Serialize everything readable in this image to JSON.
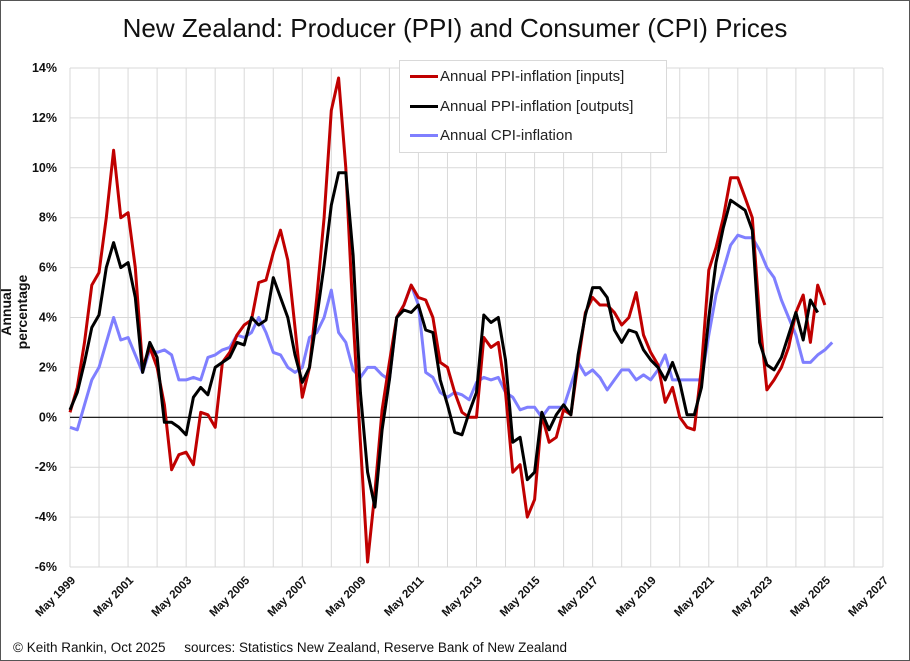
{
  "chart_data": {
    "type": "line",
    "title": "New Zealand: Producer (PPI) and Consumer (CPI) Prices",
    "ylabel": "Annual percentage",
    "xlabel": "",
    "ylim": [
      -6,
      14
    ],
    "yticks": [
      "-6%",
      "-4%",
      "-2%",
      "0%",
      "2%",
      "4%",
      "6%",
      "8%",
      "10%",
      "12%",
      "14%"
    ],
    "xlim": [
      "May 1999",
      "May 2027"
    ],
    "xticks": [
      "May 1999",
      "May 2001",
      "May 2003",
      "May 2005",
      "May 2007",
      "May 2009",
      "May 2011",
      "May 2013",
      "May 2015",
      "May 2017",
      "May 2019",
      "May 2021",
      "May 2023",
      "May 2025",
      "May 2027"
    ],
    "grid": true,
    "frequency": "quarterly",
    "start": "May 1999",
    "legend_position": "top-center",
    "series": [
      {
        "name": "Annual PPI-inflation [inputs]",
        "color": "#c00000",
        "values": [
          0.2,
          1.2,
          3.0,
          5.3,
          5.8,
          8.0,
          10.7,
          8.0,
          8.2,
          6.0,
          2.0,
          2.8,
          2.0,
          0.5,
          -2.1,
          -1.5,
          -1.4,
          -1.9,
          0.2,
          0.1,
          -0.4,
          2.2,
          2.6,
          3.3,
          3.7,
          3.9,
          5.4,
          5.5,
          6.6,
          7.5,
          6.3,
          3.6,
          0.8,
          2.0,
          4.8,
          8.0,
          12.3,
          13.6,
          10.0,
          4.0,
          -1.0,
          -5.8,
          -3.0,
          0.3,
          2.2,
          4.0,
          4.5,
          5.3,
          4.8,
          4.7,
          4.0,
          2.2,
          2.0,
          1.0,
          0.2,
          0.0,
          0.0,
          3.2,
          2.8,
          3.0,
          1.0,
          -2.2,
          -1.9,
          -4.0,
          -3.3,
          0.1,
          -1.0,
          -0.8,
          0.3,
          0.1,
          2.2,
          4.2,
          4.8,
          4.5,
          4.5,
          4.2,
          3.7,
          4.0,
          5.0,
          3.3,
          2.6,
          2.1,
          0.6,
          1.2,
          0.0,
          -0.4,
          -0.5,
          2.0,
          5.9,
          6.8,
          8.0,
          9.6,
          9.6,
          8.8,
          8.0,
          4.0,
          1.1,
          1.5,
          2.0,
          2.8,
          4.2,
          4.9,
          3.0,
          5.3,
          4.5
        ]
      },
      {
        "name": "Annual PPI-inflation [outputs]",
        "color": "#000000",
        "values": [
          0.3,
          1.0,
          2.2,
          3.6,
          4.1,
          6.0,
          7.0,
          6.0,
          6.2,
          4.8,
          1.8,
          3.0,
          2.4,
          -0.2,
          -0.2,
          -0.4,
          -0.7,
          0.8,
          1.2,
          0.9,
          2.0,
          2.2,
          2.4,
          3.0,
          2.9,
          4.0,
          3.7,
          3.9,
          5.6,
          4.8,
          4.0,
          2.5,
          1.4,
          2.0,
          4.0,
          6.1,
          8.5,
          9.8,
          9.8,
          6.5,
          1.0,
          -2.2,
          -3.6,
          -0.5,
          1.5,
          4.0,
          4.3,
          4.2,
          4.5,
          3.5,
          3.4,
          1.5,
          0.5,
          -0.6,
          -0.7,
          0.2,
          1.0,
          4.1,
          3.8,
          4.0,
          2.3,
          -1.0,
          -0.8,
          -2.5,
          -2.2,
          0.2,
          -0.5,
          0.1,
          0.5,
          0.1,
          2.5,
          4.1,
          5.2,
          5.2,
          4.8,
          3.5,
          3.0,
          3.5,
          3.4,
          2.7,
          2.3,
          2.0,
          1.5,
          2.2,
          1.4,
          0.1,
          0.1,
          1.2,
          4.0,
          6.2,
          7.6,
          8.7,
          8.5,
          8.3,
          7.5,
          3.0,
          2.1,
          1.9,
          2.4,
          3.3,
          4.2,
          3.1,
          4.7,
          4.2
        ]
      },
      {
        "name": "Annual CPI-inflation",
        "color": "#7f7fff",
        "values": [
          -0.4,
          -0.5,
          0.5,
          1.5,
          2.0,
          3.0,
          4.0,
          3.1,
          3.2,
          2.5,
          1.8,
          2.7,
          2.6,
          2.7,
          2.5,
          1.5,
          1.5,
          1.6,
          1.5,
          2.4,
          2.5,
          2.7,
          2.8,
          3.3,
          3.2,
          3.4,
          4.0,
          3.4,
          2.6,
          2.5,
          2.0,
          1.8,
          2.0,
          3.2,
          3.4,
          4.0,
          5.1,
          3.4,
          3.0,
          1.9,
          1.6,
          2.0,
          2.0,
          1.7,
          1.5,
          4.0,
          4.5,
          5.3,
          4.5,
          1.8,
          1.6,
          1.0,
          0.8,
          1.0,
          0.9,
          0.7,
          1.4,
          1.6,
          1.5,
          1.6,
          1.0,
          0.8,
          0.3,
          0.4,
          0.4,
          0.0,
          0.4,
          0.4,
          0.4,
          1.3,
          2.2,
          1.7,
          1.9,
          1.6,
          1.1,
          1.5,
          1.9,
          1.9,
          1.5,
          1.7,
          1.5,
          1.9,
          2.5,
          1.5,
          1.5,
          1.5,
          1.5,
          1.5,
          3.3,
          4.9,
          5.9,
          6.9,
          7.3,
          7.2,
          7.2,
          6.7,
          6.0,
          5.6,
          4.7,
          4.0,
          3.3,
          2.2,
          2.2,
          2.5,
          2.7,
          3.0
        ]
      }
    ]
  },
  "footer": "© Keith Rankin, Oct 2025     sources: Statistics New Zealand, Reserve Bank of New Zealand"
}
